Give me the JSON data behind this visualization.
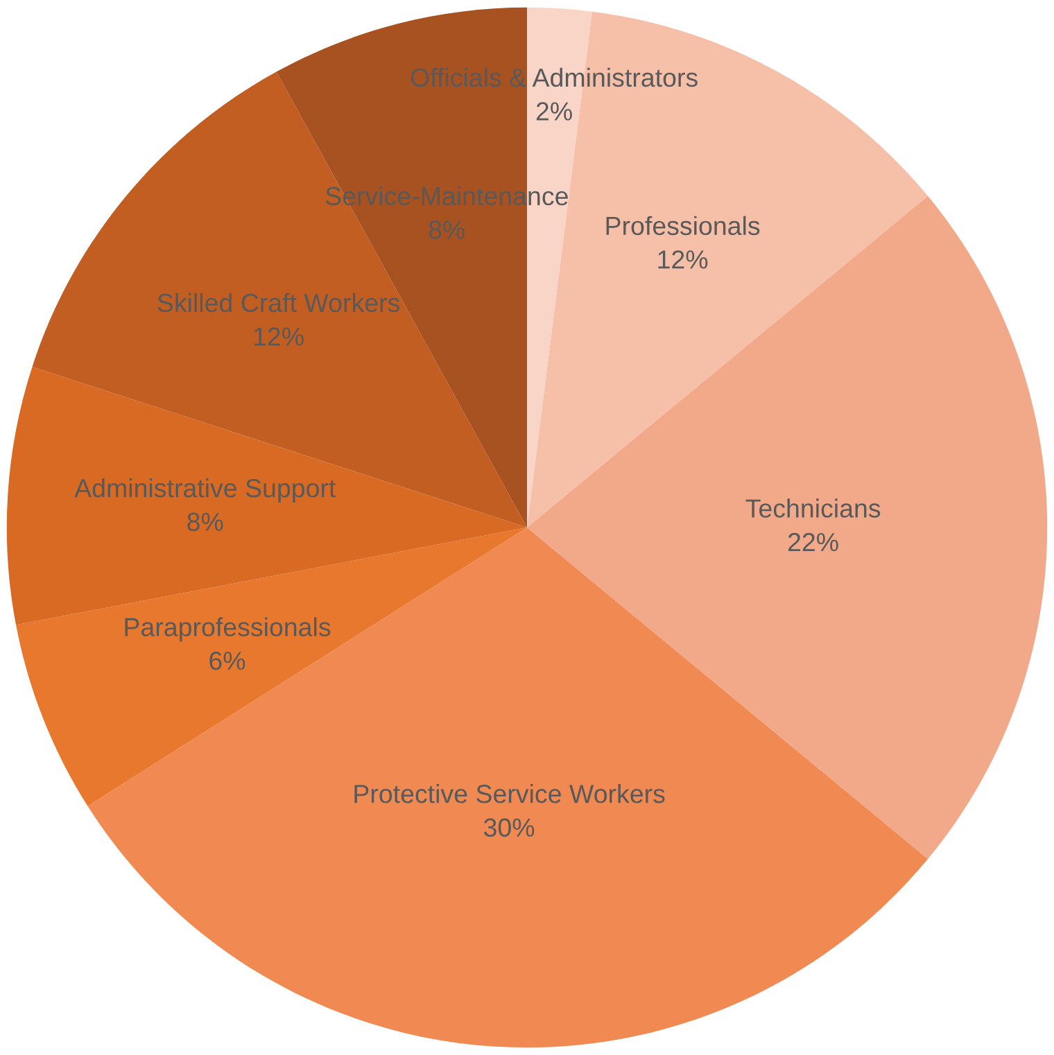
{
  "chart_data": {
    "type": "pie",
    "categories": [
      "Officials & Administrators",
      "Professionals",
      "Technicians",
      "Protective Service Workers",
      "Paraprofessionals",
      "Administrative Support",
      "Skilled Craft Workers",
      "Service-Maintenance"
    ],
    "values": [
      2,
      12,
      22,
      30,
      6,
      8,
      12,
      8
    ],
    "colors": [
      "#f9d5c8",
      "#f6bfa8",
      "#f2a98a",
      "#f08a52",
      "#e8782e",
      "#d86a24",
      "#c25e22",
      "#a85222"
    ],
    "value_labels": [
      "2%",
      "12%",
      "22%",
      "30%",
      "6%",
      "8%",
      "12%",
      "8%"
    ],
    "legend": false
  }
}
